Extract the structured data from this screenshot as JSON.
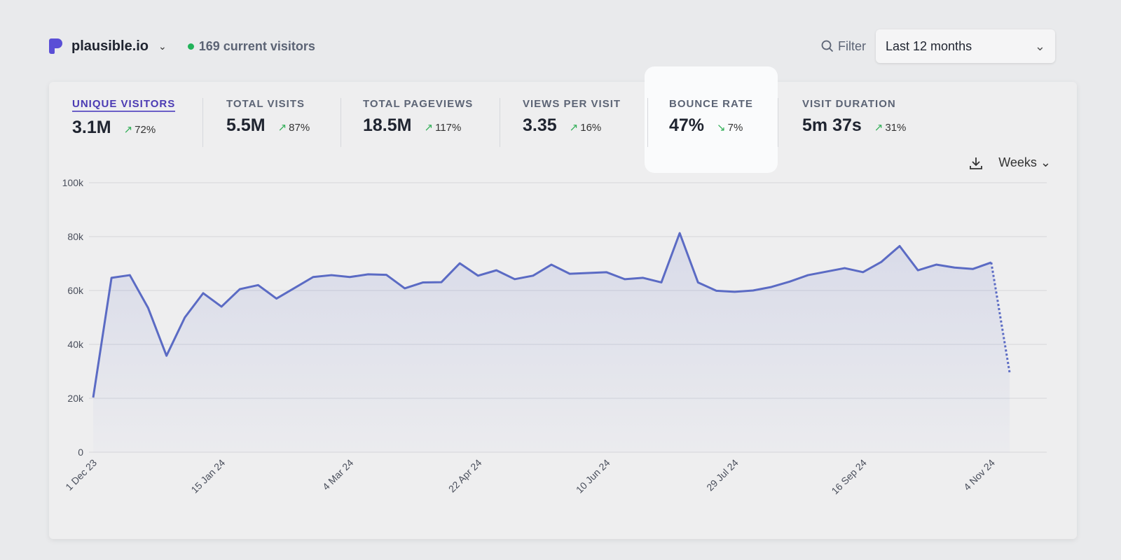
{
  "header": {
    "site": "plausible.io",
    "current_visitors": "169 current visitors",
    "filter_label": "Filter",
    "period": "Last 12 months"
  },
  "metrics": [
    {
      "label": "UNIQUE VISITORS",
      "value": "3.1M",
      "change": "72%",
      "direction": "up",
      "active": true
    },
    {
      "label": "TOTAL VISITS",
      "value": "5.5M",
      "change": "87%",
      "direction": "up"
    },
    {
      "label": "TOTAL PAGEVIEWS",
      "value": "18.5M",
      "change": "117%",
      "direction": "up"
    },
    {
      "label": "VIEWS PER VISIT",
      "value": "3.35",
      "change": "16%",
      "direction": "up"
    },
    {
      "label": "BOUNCE RATE",
      "value": "47%",
      "change": "7%",
      "direction": "down"
    },
    {
      "label": "VISIT DURATION",
      "value": "5m 37s",
      "change": "31%",
      "direction": "up"
    }
  ],
  "interval": "Weeks",
  "colors": {
    "line": "#5b6bc4",
    "accent": "#4b3bb3",
    "up": "#2fae55",
    "live": "#22b35a"
  },
  "chart_data": {
    "type": "area",
    "ylim": [
      0,
      100000
    ],
    "y_ticks": [
      "0",
      "20k",
      "40k",
      "60k",
      "80k",
      "100k"
    ],
    "x_tick_labels": [
      "1 Dec 23",
      "15 Jan 24",
      "4 Mar 24",
      "22 Apr 24",
      "10 Jun 24",
      "29 Jul 24",
      "16 Sep 24",
      "4 Nov 24"
    ],
    "x_tick_indices": [
      0,
      7,
      14,
      21,
      28,
      35,
      42,
      49
    ],
    "grid": true,
    "incomplete_last_point": true,
    "values": [
      20300,
      64700,
      65700,
      53500,
      35800,
      50000,
      59000,
      54000,
      60500,
      62000,
      57000,
      61000,
      65000,
      65700,
      65000,
      66000,
      65800,
      60800,
      63000,
      63100,
      70100,
      65500,
      67500,
      64200,
      65500,
      69600,
      66200,
      66500,
      66800,
      64200,
      64700,
      63000,
      81300,
      63000,
      59900,
      59500,
      60000,
      61300,
      63300,
      65700,
      67000,
      68300,
      66800,
      70600,
      76500,
      67500,
      69600,
      68500,
      68000,
      70400,
      29600
    ]
  }
}
